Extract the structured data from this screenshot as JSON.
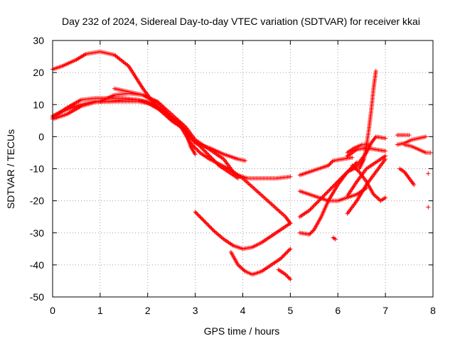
{
  "chart_data": {
    "type": "scatter",
    "title": "Day 232 of 2024, Sidereal Day-to-day VTEC variation (SDTVAR) for receiver kkai",
    "xlabel": "GPS time / hours",
    "ylabel": "SDTVAR / TECUs",
    "xlim": [
      0,
      8
    ],
    "ylim": [
      -50,
      30
    ],
    "xticks": [
      "0",
      "1",
      "2",
      "3",
      "4",
      "5",
      "6",
      "7",
      "8"
    ],
    "yticks": [
      "-50",
      "-40",
      "-30",
      "-20",
      "-10",
      "0",
      "10",
      "20",
      "30"
    ],
    "grid": true,
    "marker_color": "#ff0000",
    "series": [
      {
        "points": [
          [
            0,
            21
          ],
          [
            0.2,
            22
          ],
          [
            0.5,
            24
          ],
          [
            0.7,
            25.8
          ],
          [
            1.0,
            26.5
          ],
          [
            1.3,
            25.5
          ],
          [
            1.6,
            22
          ],
          [
            1.9,
            15
          ],
          [
            2.2,
            9
          ],
          [
            2.5,
            5
          ],
          [
            2.8,
            2
          ]
        ]
      },
      {
        "points": [
          [
            0,
            5.5
          ],
          [
            0.3,
            7
          ],
          [
            0.6,
            9.5
          ],
          [
            0.9,
            10.8
          ],
          [
            1.2,
            11
          ],
          [
            1.5,
            11.5
          ],
          [
            1.8,
            11.5
          ],
          [
            2.1,
            10.5
          ],
          [
            2.4,
            7
          ],
          [
            2.7,
            3
          ],
          [
            2.9,
            -2
          ],
          [
            3.1,
            -5
          ],
          [
            3.3,
            -7
          ],
          [
            3.5,
            -8.5
          ],
          [
            3.7,
            -10
          ],
          [
            3.9,
            -12
          ],
          [
            4.1,
            -13
          ],
          [
            4.4,
            -13
          ],
          [
            4.7,
            -13
          ],
          [
            5.0,
            -12.5
          ]
        ]
      },
      {
        "points": [
          [
            0,
            6
          ],
          [
            0.3,
            9
          ],
          [
            0.6,
            11.5
          ],
          [
            0.9,
            12
          ],
          [
            1.2,
            12
          ],
          [
            1.5,
            12
          ],
          [
            1.8,
            11.5
          ],
          [
            2.1,
            10
          ],
          [
            2.4,
            7
          ],
          [
            2.7,
            4
          ],
          [
            2.9,
            0
          ],
          [
            3.1,
            -3
          ],
          [
            3.3,
            -6
          ],
          [
            3.5,
            -9
          ],
          [
            3.7,
            -11
          ],
          [
            3.9,
            -13
          ]
        ]
      },
      {
        "points": [
          [
            0,
            6.5
          ],
          [
            0.3,
            8.5
          ],
          [
            0.6,
            10
          ],
          [
            0.9,
            11
          ],
          [
            1.2,
            11
          ],
          [
            1.5,
            11
          ],
          [
            1.8,
            11
          ],
          [
            2.0,
            10.5
          ],
          [
            2.3,
            8
          ],
          [
            2.6,
            4.5
          ],
          [
            2.8,
            1.5
          ],
          [
            2.9,
            -3
          ],
          [
            3.0,
            -5.5
          ]
        ]
      },
      {
        "points": [
          [
            1.3,
            15
          ],
          [
            1.6,
            14
          ],
          [
            1.9,
            13
          ],
          [
            2.2,
            11
          ],
          [
            2.5,
            7
          ],
          [
            2.8,
            3
          ],
          [
            3.0,
            -1
          ],
          [
            3.3,
            -4
          ],
          [
            3.6,
            -7
          ],
          [
            3.8,
            -11
          ],
          [
            4.0,
            -13
          ],
          [
            4.3,
            -17
          ],
          [
            4.6,
            -21
          ],
          [
            4.9,
            -25
          ],
          [
            5.0,
            -27
          ]
        ]
      },
      {
        "points": [
          [
            1.0,
            11
          ],
          [
            1.3,
            13
          ],
          [
            1.6,
            13.5
          ],
          [
            1.9,
            13
          ],
          [
            2.2,
            10.5
          ],
          [
            2.5,
            6
          ],
          [
            2.8,
            1.5
          ],
          [
            3.0,
            -2
          ],
          [
            3.3,
            -3.5
          ],
          [
            3.6,
            -5.5
          ],
          [
            3.9,
            -7
          ],
          [
            4.05,
            -7.5
          ]
        ]
      },
      {
        "points": [
          [
            3.0,
            -23.5
          ],
          [
            3.2,
            -26.5
          ],
          [
            3.4,
            -29.5
          ],
          [
            3.6,
            -32
          ],
          [
            3.8,
            -34
          ],
          [
            4.0,
            -35
          ],
          [
            4.2,
            -34.5
          ],
          [
            4.4,
            -33
          ],
          [
            4.6,
            -31
          ],
          [
            4.8,
            -29
          ],
          [
            5.0,
            -27
          ]
        ]
      },
      {
        "points": [
          [
            3.75,
            -36
          ],
          [
            3.9,
            -40
          ],
          [
            4.05,
            -42
          ],
          [
            4.2,
            -43
          ],
          [
            4.4,
            -42
          ],
          [
            4.6,
            -40
          ],
          [
            4.8,
            -38
          ],
          [
            5.0,
            -35
          ]
        ]
      },
      {
        "points": [
          [
            4.75,
            -41.5
          ],
          [
            4.9,
            -43
          ],
          [
            5.0,
            -44.5
          ]
        ]
      },
      {
        "points": [
          [
            5.2,
            -12
          ],
          [
            5.4,
            -11
          ],
          [
            5.6,
            -10
          ],
          [
            5.8,
            -9
          ],
          [
            5.9,
            -7.5
          ],
          [
            6.1,
            -7
          ],
          [
            6.3,
            -6.5
          ]
        ]
      },
      {
        "points": [
          [
            5.2,
            -17
          ],
          [
            5.4,
            -18
          ],
          [
            5.6,
            -19
          ],
          [
            5.8,
            -20
          ],
          [
            6.0,
            -20
          ],
          [
            6.2,
            -19
          ],
          [
            6.4,
            -18
          ],
          [
            6.6,
            -16
          ]
        ]
      },
      {
        "points": [
          [
            5.2,
            -25
          ],
          [
            5.4,
            -23
          ],
          [
            5.6,
            -20
          ],
          [
            5.8,
            -17
          ],
          [
            6.0,
            -14
          ],
          [
            6.2,
            -11
          ],
          [
            6.4,
            -8
          ]
        ]
      },
      {
        "points": [
          [
            5.2,
            -30
          ],
          [
            5.4,
            -30.5
          ],
          [
            5.5,
            -29
          ],
          [
            5.65,
            -25
          ],
          [
            5.8,
            -20
          ],
          [
            6.0,
            -15
          ],
          [
            6.2,
            -11
          ],
          [
            6.4,
            -9.5
          ]
        ]
      },
      {
        "points": [
          [
            5.9,
            -31.5
          ],
          [
            5.95,
            -32
          ]
        ]
      },
      {
        "points": [
          [
            6.2,
            -24
          ],
          [
            6.4,
            -20
          ],
          [
            6.6,
            -15
          ],
          [
            6.8,
            -11
          ],
          [
            7.0,
            -7
          ]
        ]
      },
      {
        "points": [
          [
            6.2,
            -18.5
          ],
          [
            6.4,
            -14
          ],
          [
            6.6,
            -10
          ],
          [
            6.8,
            -8
          ],
          [
            7.0,
            -6
          ]
        ]
      },
      {
        "points": [
          [
            6.2,
            -11
          ],
          [
            6.4,
            -9
          ],
          [
            6.6,
            -5
          ],
          [
            6.7,
            -2
          ],
          [
            6.8,
            0
          ],
          [
            7.0,
            -0.5
          ]
        ]
      },
      {
        "points": [
          [
            6.2,
            -6
          ],
          [
            6.4,
            -4
          ],
          [
            6.6,
            -3.5
          ],
          [
            6.8,
            -4
          ],
          [
            7.0,
            -4.5
          ]
        ]
      },
      {
        "points": [
          [
            6.2,
            -5
          ],
          [
            6.35,
            -3.5
          ],
          [
            6.5,
            -2.5
          ],
          [
            6.65,
            -2.5
          ]
        ]
      },
      {
        "points": [
          [
            6.3,
            -9
          ],
          [
            6.45,
            -11
          ],
          [
            6.6,
            -14
          ],
          [
            6.75,
            -18
          ],
          [
            6.9,
            -20
          ],
          [
            7.0,
            -19
          ]
        ]
      },
      {
        "points": [
          [
            6.45,
            -10
          ],
          [
            6.55,
            -7
          ],
          [
            6.6,
            -3
          ],
          [
            6.65,
            2
          ],
          [
            6.7,
            8
          ],
          [
            6.75,
            15
          ],
          [
            6.8,
            20.5
          ]
        ]
      },
      {
        "points": [
          [
            7.25,
            0.5
          ],
          [
            7.4,
            0.5
          ],
          [
            7.5,
            0.5
          ]
        ]
      },
      {
        "points": [
          [
            7.25,
            -2.5
          ],
          [
            7.4,
            -2
          ],
          [
            7.55,
            -1
          ],
          [
            7.7,
            -0.5
          ],
          [
            7.85,
            0
          ]
        ]
      },
      {
        "points": [
          [
            7.4,
            -2.5
          ],
          [
            7.55,
            -3
          ],
          [
            7.7,
            -4
          ],
          [
            7.85,
            -5
          ],
          [
            7.95,
            -5
          ]
        ]
      },
      {
        "points": [
          [
            7.3,
            -10
          ],
          [
            7.4,
            -11
          ],
          [
            7.5,
            -13
          ],
          [
            7.6,
            -15
          ]
        ]
      },
      {
        "points": [
          [
            7.9,
            -11.5
          ]
        ]
      },
      {
        "points": [
          [
            7.9,
            -22
          ]
        ]
      }
    ]
  }
}
